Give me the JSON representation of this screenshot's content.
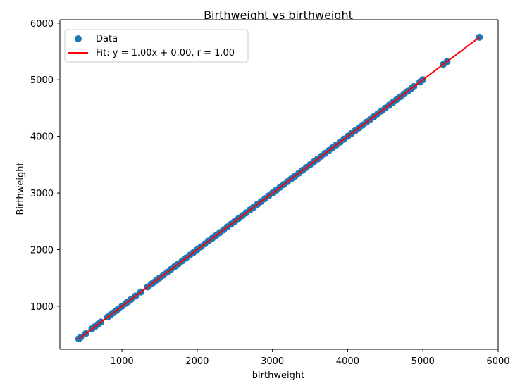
{
  "chart_data": {
    "type": "scatter",
    "title": "Birthweight vs birthweight",
    "xlabel": "birthweight",
    "ylabel": "Birthweight",
    "xlim": [
      175,
      6000
    ],
    "ylim": [
      240,
      6060
    ],
    "xticks": [
      1000,
      2000,
      3000,
      4000,
      5000,
      6000
    ],
    "yticks": [
      1000,
      2000,
      3000,
      4000,
      5000,
      6000
    ],
    "xtick_labels": [
      "1000",
      "2000",
      "3000",
      "4000",
      "5000",
      "6000"
    ],
    "ytick_labels": [
      "1000",
      "2000",
      "3000",
      "4000",
      "5000",
      "6000"
    ],
    "grid": false,
    "legend_position": "top-left",
    "series": [
      {
        "name": "Data",
        "kind": "scatter",
        "color": "#1f77b4",
        "x": [
          425,
          450,
          520,
          600,
          640,
          680,
          720,
          810,
          850,
          880,
          920,
          950,
          1000,
          1050,
          1080,
          1120,
          1180,
          1250,
          1340,
          1390,
          1420,
          1460,
          1500,
          1550,
          1600,
          1650,
          1700,
          1750,
          1800,
          1850,
          1900,
          1950,
          2000,
          2050,
          2100,
          2150,
          2200,
          2250,
          2300,
          2350,
          2400,
          2450,
          2500,
          2550,
          2600,
          2650,
          2700,
          2750,
          2800,
          2850,
          2900,
          2950,
          3000,
          3050,
          3100,
          3150,
          3200,
          3250,
          3300,
          3350,
          3400,
          3450,
          3500,
          3550,
          3600,
          3650,
          3700,
          3750,
          3800,
          3850,
          3900,
          3950,
          4000,
          4050,
          4100,
          4150,
          4200,
          4250,
          4300,
          4350,
          4400,
          4450,
          4500,
          4550,
          4600,
          4650,
          4700,
          4750,
          4800,
          4850,
          4880,
          4960,
          5000,
          5270,
          5320,
          5750
        ],
        "y": [
          425,
          450,
          520,
          600,
          640,
          680,
          720,
          810,
          850,
          880,
          920,
          950,
          1000,
          1050,
          1080,
          1120,
          1180,
          1250,
          1340,
          1390,
          1420,
          1460,
          1500,
          1550,
          1600,
          1650,
          1700,
          1750,
          1800,
          1850,
          1900,
          1950,
          2000,
          2050,
          2100,
          2150,
          2200,
          2250,
          2300,
          2350,
          2400,
          2450,
          2500,
          2550,
          2600,
          2650,
          2700,
          2750,
          2800,
          2850,
          2900,
          2950,
          3000,
          3050,
          3100,
          3150,
          3200,
          3250,
          3300,
          3350,
          3400,
          3450,
          3500,
          3550,
          3600,
          3650,
          3700,
          3750,
          3800,
          3850,
          3900,
          3950,
          4000,
          4050,
          4100,
          4150,
          4200,
          4250,
          4300,
          4350,
          4400,
          4450,
          4500,
          4550,
          4600,
          4650,
          4700,
          4750,
          4800,
          4850,
          4880,
          4960,
          5000,
          5270,
          5320,
          5750
        ]
      },
      {
        "name": "Fit: y = 1.00x + 0.00, r = 1.00",
        "kind": "line",
        "color": "#ff0000",
        "x": [
          425,
          5750
        ],
        "y": [
          425,
          5750
        ]
      }
    ]
  }
}
